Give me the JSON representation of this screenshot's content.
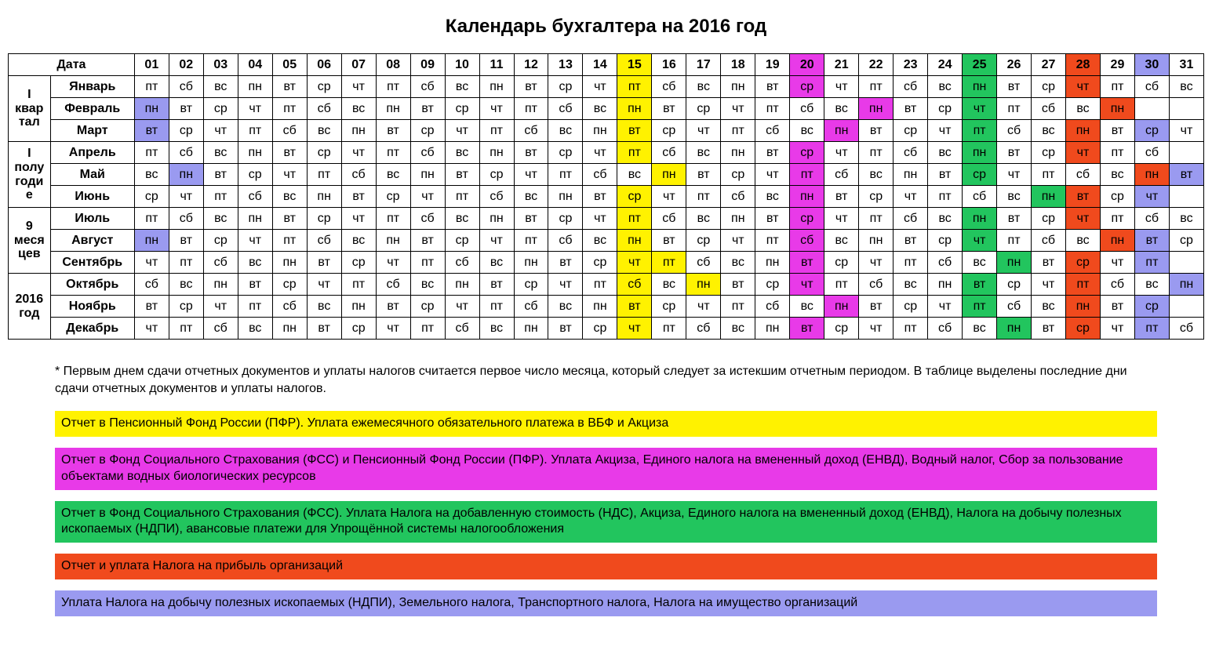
{
  "title": "Календарь бухгалтера на 2016 год",
  "headerDateLabel": "Дата",
  "dayNumbers": [
    "01",
    "02",
    "03",
    "04",
    "05",
    "06",
    "07",
    "08",
    "09",
    "10",
    "11",
    "12",
    "13",
    "14",
    "15",
    "16",
    "17",
    "18",
    "19",
    "20",
    "21",
    "22",
    "23",
    "24",
    "25",
    "26",
    "27",
    "28",
    "29",
    "30",
    "31"
  ],
  "colors": {
    "yellow": "#fff200",
    "magenta": "#e83ae8",
    "green": "#22c55e",
    "orange": "#f04a1d",
    "violet": "#9a9af0",
    "none": "#ffffff"
  },
  "headerHighlights": {
    "15": "yellow",
    "20": "magenta",
    "25": "green",
    "28": "orange",
    "30": "violet"
  },
  "groups": [
    {
      "label": "I квар тал",
      "rows": [
        "jan",
        "feb",
        "mar"
      ]
    },
    {
      "label": "I полу годи е",
      "rows": [
        "apr",
        "may",
        "jun"
      ]
    },
    {
      "label": "9 меся цев",
      "rows": [
        "jul",
        "aug",
        "sep"
      ]
    },
    {
      "label": "2016 год",
      "rows": [
        "oct",
        "nov",
        "dec"
      ]
    }
  ],
  "months": {
    "jan": {
      "name": "Январь",
      "days": [
        "пт",
        "сб",
        "вс",
        "пн",
        "вт",
        "ср",
        "чт",
        "пт",
        "сб",
        "вс",
        "пн",
        "вт",
        "ср",
        "чт",
        "пт",
        "сб",
        "вс",
        "пн",
        "вт",
        "ср",
        "чт",
        "пт",
        "сб",
        "вс",
        "пн",
        "вт",
        "ср",
        "чт",
        "пт",
        "сб",
        "вс"
      ],
      "hl": {
        "15": "yellow",
        "20": "magenta",
        "25": "green",
        "28": "orange"
      }
    },
    "feb": {
      "name": "Февраль",
      "days": [
        "пн",
        "вт",
        "ср",
        "чт",
        "пт",
        "сб",
        "вс",
        "пн",
        "вт",
        "ср",
        "чт",
        "пт",
        "сб",
        "вс",
        "пн",
        "вт",
        "ср",
        "чт",
        "пт",
        "сб",
        "вс",
        "пн",
        "вт",
        "ср",
        "чт",
        "пт",
        "сб",
        "вс",
        "пн",
        "",
        ""
      ],
      "hl": {
        "1": "violet",
        "15": "yellow",
        "22": "magenta",
        "25": "green",
        "29": "orange"
      }
    },
    "mar": {
      "name": "Март",
      "days": [
        "вт",
        "ср",
        "чт",
        "пт",
        "сб",
        "вс",
        "пн",
        "вт",
        "ср",
        "чт",
        "пт",
        "сб",
        "вс",
        "пн",
        "вт",
        "ср",
        "чт",
        "пт",
        "сб",
        "вс",
        "пн",
        "вт",
        "ср",
        "чт",
        "пт",
        "сб",
        "вс",
        "пн",
        "вт",
        "ср",
        "чт"
      ],
      "hl": {
        "1": "violet",
        "15": "yellow",
        "21": "magenta",
        "25": "green",
        "28": "orange",
        "30": "violet"
      }
    },
    "apr": {
      "name": "Апрель",
      "days": [
        "пт",
        "сб",
        "вс",
        "пн",
        "вт",
        "ср",
        "чт",
        "пт",
        "сб",
        "вс",
        "пн",
        "вт",
        "ср",
        "чт",
        "пт",
        "сб",
        "вс",
        "пн",
        "вт",
        "ср",
        "чт",
        "пт",
        "сб",
        "вс",
        "пн",
        "вт",
        "ср",
        "чт",
        "пт",
        "сб",
        ""
      ],
      "hl": {
        "15": "yellow",
        "20": "magenta",
        "25": "green",
        "28": "orange"
      }
    },
    "may": {
      "name": "Май",
      "days": [
        "вс",
        "пн",
        "вт",
        "ср",
        "чт",
        "пт",
        "сб",
        "вс",
        "пн",
        "вт",
        "ср",
        "чт",
        "пт",
        "сб",
        "вс",
        "пн",
        "вт",
        "ср",
        "чт",
        "пт",
        "сб",
        "вс",
        "пн",
        "вт",
        "ср",
        "чт",
        "пт",
        "сб",
        "вс",
        "пн",
        "вт"
      ],
      "hl": {
        "2": "violet",
        "16": "yellow",
        "20": "magenta",
        "25": "green",
        "30": "orange",
        "31": "violet"
      }
    },
    "jun": {
      "name": "Июнь",
      "days": [
        "ср",
        "чт",
        "пт",
        "сб",
        "вс",
        "пн",
        "вт",
        "ср",
        "чт",
        "пт",
        "сб",
        "вс",
        "пн",
        "вт",
        "ср",
        "чт",
        "пт",
        "сб",
        "вс",
        "пн",
        "вт",
        "ср",
        "чт",
        "пт",
        "сб",
        "вс",
        "пн",
        "вт",
        "ср",
        "чт",
        ""
      ],
      "hl": {
        "15": "yellow",
        "20": "magenta",
        "27": "green",
        "28": "orange",
        "30": "violet"
      }
    },
    "jul": {
      "name": "Июль",
      "days": [
        "пт",
        "сб",
        "вс",
        "пн",
        "вт",
        "ср",
        "чт",
        "пт",
        "сб",
        "вс",
        "пн",
        "вт",
        "ср",
        "чт",
        "пт",
        "сб",
        "вс",
        "пн",
        "вт",
        "ср",
        "чт",
        "пт",
        "сб",
        "вс",
        "пн",
        "вт",
        "ср",
        "чт",
        "пт",
        "сб",
        "вс"
      ],
      "hl": {
        "15": "yellow",
        "20": "magenta",
        "25": "green",
        "28": "orange"
      }
    },
    "aug": {
      "name": "Август",
      "days": [
        "пн",
        "вт",
        "ср",
        "чт",
        "пт",
        "сб",
        "вс",
        "пн",
        "вт",
        "ср",
        "чт",
        "пт",
        "сб",
        "вс",
        "пн",
        "вт",
        "ср",
        "чт",
        "пт",
        "сб",
        "вс",
        "пн",
        "вт",
        "ср",
        "чт",
        "пт",
        "сб",
        "вс",
        "пн",
        "вт",
        "ср"
      ],
      "hl": {
        "1": "violet",
        "15": "yellow",
        "20": "magenta",
        "25": "green",
        "29": "orange",
        "30": "violet"
      }
    },
    "sep": {
      "name": "Сентябрь",
      "days": [
        "чт",
        "пт",
        "сб",
        "вс",
        "пн",
        "вт",
        "ср",
        "чт",
        "пт",
        "сб",
        "вс",
        "пн",
        "вт",
        "ср",
        "чт",
        "пт",
        "сб",
        "вс",
        "пн",
        "вт",
        "ср",
        "чт",
        "пт",
        "сб",
        "вс",
        "пн",
        "вт",
        "ср",
        "чт",
        "пт",
        ""
      ],
      "hl": {
        "15": "yellow",
        "16": "yellow",
        "20": "magenta",
        "26": "green",
        "28": "orange",
        "30": "violet"
      }
    },
    "oct": {
      "name": "Октябрь",
      "days": [
        "сб",
        "вс",
        "пн",
        "вт",
        "ср",
        "чт",
        "пт",
        "сб",
        "вс",
        "пн",
        "вт",
        "ср",
        "чт",
        "пт",
        "сб",
        "вс",
        "пн",
        "вт",
        "ср",
        "чт",
        "пт",
        "сб",
        "вс",
        "пн",
        "вт",
        "ср",
        "чт",
        "пт",
        "сб",
        "вс",
        "пн"
      ],
      "hl": {
        "15": "yellow",
        "17": "yellow",
        "20": "magenta",
        "25": "green",
        "28": "orange",
        "31": "violet"
      }
    },
    "nov": {
      "name": "Ноябрь",
      "days": [
        "вт",
        "ср",
        "чт",
        "пт",
        "сб",
        "вс",
        "пн",
        "вт",
        "ср",
        "чт",
        "пт",
        "сб",
        "вс",
        "пн",
        "вт",
        "ср",
        "чт",
        "пт",
        "сб",
        "вс",
        "пн",
        "вт",
        "ср",
        "чт",
        "пт",
        "сб",
        "вс",
        "пн",
        "вт",
        "ср",
        ""
      ],
      "hl": {
        "15": "yellow",
        "21": "magenta",
        "25": "green",
        "28": "orange",
        "30": "violet"
      }
    },
    "dec": {
      "name": "Декабрь",
      "days": [
        "чт",
        "пт",
        "сб",
        "вс",
        "пн",
        "вт",
        "ср",
        "чт",
        "пт",
        "сб",
        "вс",
        "пн",
        "вт",
        "ср",
        "чт",
        "пт",
        "сб",
        "вс",
        "пн",
        "вт",
        "ср",
        "чт",
        "пт",
        "сб",
        "вс",
        "пн",
        "вт",
        "ср",
        "чт",
        "пт",
        "сб"
      ],
      "hl": {
        "15": "yellow",
        "20": "magenta",
        "26": "green",
        "28": "orange",
        "30": "violet"
      }
    }
  },
  "footnote": "* Первым днем сдачи отчетных документов и уплаты налогов считается первое число месяца, который следует за истекшим отчетным периодом. В таблице выделены последние дни сдачи отчетных документов и уплаты налогов.",
  "legend": [
    {
      "color": "yellow",
      "text": "Отчет в Пенсионный Фонд России (ПФР). Уплата ежемесячного обязательного платежа в ВБФ и Акциза"
    },
    {
      "color": "magenta",
      "text": "Отчет в Фонд Социального Страхования (ФСС) и Пенсионный Фонд России (ПФР). Уплата  Акциза, Единого налога на вмененный доход (ЕНВД), Водный налог,  Сбор за пользование объектами водных биологических ресурсов"
    },
    {
      "color": "green",
      "text": "Отчет в Фонд Социального Страхования (ФСС). Уплата Налога на добавленную стоимость (НДС), Акциза, Единого налога на вмененный доход (ЕНВД), Налога на добычу полезных ископаемых (НДПИ),  авансовые платежи для Упрощённой системы налогообложения"
    },
    {
      "color": "orange",
      "text": "Отчет и уплата Налога на прибыль организаций"
    },
    {
      "color": "violet",
      "text": "Уплата Налога на добычу полезных ископаемых (НДПИ), Земельного налога, Транспортного налога, Налога на имущество организаций"
    }
  ]
}
